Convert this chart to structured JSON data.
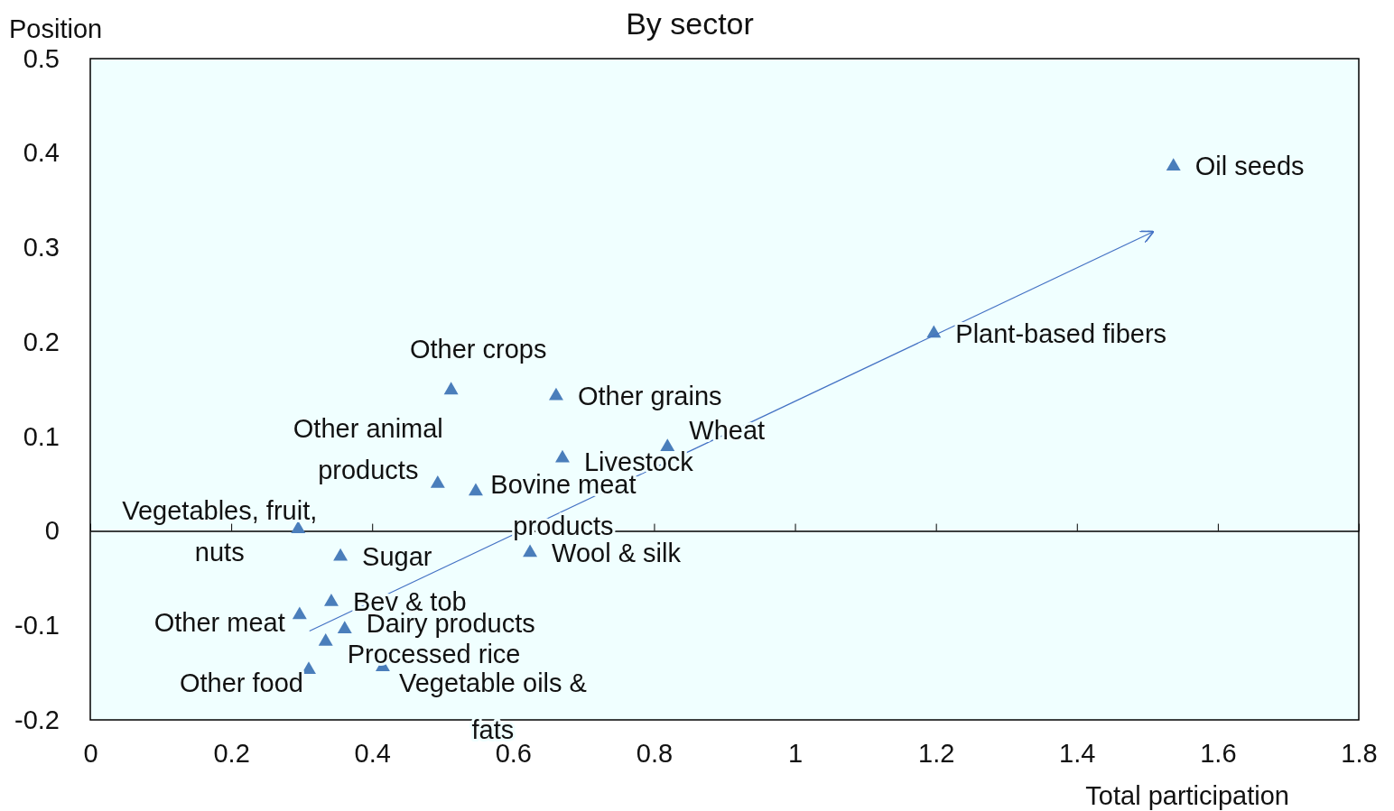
{
  "chart_data": {
    "type": "scatter",
    "title": "By sector",
    "xlabel": "Total participation",
    "ylabel": "Position",
    "xlim": [
      0,
      1.8
    ],
    "xticks": [
      0,
      0.2,
      0.4,
      0.6,
      0.8,
      1,
      1.2,
      1.4,
      1.6,
      1.8
    ],
    "ylim": [
      -0.2,
      0.5
    ],
    "yticks": [
      -0.2,
      -0.1,
      0,
      0.1,
      0.2,
      0.3,
      0.4,
      0.5
    ],
    "marker": "triangle",
    "series": [
      {
        "color": "#4a7ebb",
        "x": [
          1.537,
          1.197,
          0.512,
          0.661,
          0.819,
          0.67,
          0.493,
          0.547,
          0.295,
          0.355,
          0.624,
          0.342,
          0.297,
          0.361,
          0.334,
          0.415,
          0.31
        ],
        "values": [
          0.386,
          0.209,
          0.149,
          0.143,
          0.089,
          0.077,
          0.05,
          0.042,
          0.002,
          -0.027,
          -0.023,
          -0.075,
          -0.089,
          -0.104,
          -0.117,
          -0.144,
          -0.147
        ]
      },
      {
        "type": "line",
        "marker": "none",
        "color": "#4472c4",
        "x": [
          0.311,
          1.509
        ],
        "values": [
          -0.106,
          0.317
        ]
      }
    ],
    "annotations": [
      {
        "text": "Oil seeds",
        "x": 1.537,
        "y": 0.386
      },
      {
        "text": "Plant-based fibers",
        "x": 1.197,
        "y": 0.209
      },
      {
        "text": "Other crops",
        "x": 0.512,
        "y": 0.149
      },
      {
        "text": "Other grains",
        "x": 0.661,
        "y": 0.143
      },
      {
        "text": "Wheat",
        "x": 0.819,
        "y": 0.089
      },
      {
        "text": "Livestock",
        "x": 0.67,
        "y": 0.077
      },
      {
        "text": "Other animal products",
        "x": 0.493,
        "y": 0.05
      },
      {
        "text": "Bovine meat products",
        "x": 0.547,
        "y": 0.042
      },
      {
        "text": "Vegetables, fruit, nuts",
        "x": 0.295,
        "y": 0.002
      },
      {
        "text": "Sugar",
        "x": 0.355,
        "y": -0.027
      },
      {
        "text": "Wool & silk",
        "x": 0.624,
        "y": -0.023
      },
      {
        "text": "Bev & tob",
        "x": 0.342,
        "y": -0.075
      },
      {
        "text": "Other meat",
        "x": 0.297,
        "y": -0.089
      },
      {
        "text": "Dairy products",
        "x": 0.361,
        "y": -0.104
      },
      {
        "text": "Processed rice",
        "x": 0.334,
        "y": -0.117
      },
      {
        "text": "Vegetable oils & fats",
        "x": 0.415,
        "y": -0.144
      },
      {
        "text": "Other food",
        "x": 0.31,
        "y": -0.147
      }
    ]
  }
}
